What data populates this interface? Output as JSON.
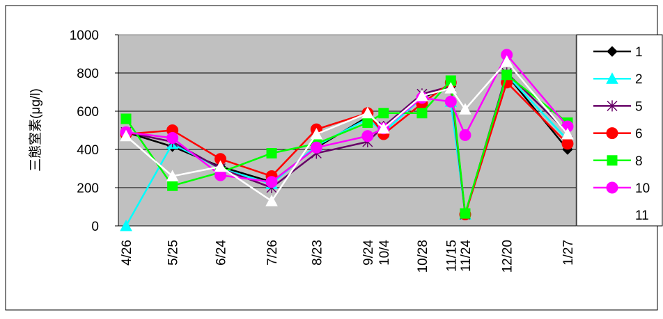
{
  "chart_data": {
    "type": "line",
    "y_label": "三態窒素(μg/l)",
    "x": [
      "4/26",
      "5/25",
      "6/24",
      "7/26",
      "8/23",
      "9/24",
      "10/4",
      "10/28",
      "11/15",
      "11/24",
      "12/20",
      "1/27"
    ],
    "ylim": [
      0,
      1000
    ],
    "yticks": [
      0,
      200,
      400,
      600,
      800,
      1000
    ],
    "grid": true,
    "legend": "right",
    "series": [
      {
        "name": "1",
        "color": "#000000",
        "marker": "diamond",
        "values": [
          490,
          415,
          310,
          230,
          410,
          570,
          520,
          670,
          730,
          60,
          790,
          400
        ]
      },
      {
        "name": "2",
        "color": "#00ffff",
        "marker": "triangle",
        "values": [
          0,
          430,
          300,
          220,
          420,
          560,
          490,
          670,
          650,
          60,
          790,
          450
        ]
      },
      {
        "name": "5",
        "color": "#660066",
        "marker": "asterisk",
        "values": [
          490,
          440,
          300,
          200,
          380,
          440,
          520,
          690,
          730,
          60,
          800,
          490
        ]
      },
      {
        "name": "6",
        "color": "#ff0000",
        "marker": "circle",
        "values": [
          480,
          500,
          350,
          260,
          505,
          590,
          480,
          640,
          750,
          60,
          750,
          430
        ]
      },
      {
        "name": "8",
        "color": "#00ff00",
        "marker": "square",
        "values": [
          560,
          210,
          280,
          380,
          430,
          540,
          590,
          590,
          760,
          65,
          790,
          540
        ]
      },
      {
        "name": "10",
        "color": "#ff00ff",
        "marker": "circle",
        "values": [
          490,
          460,
          265,
          230,
          410,
          470,
          510,
          670,
          650,
          475,
          895,
          520
        ]
      },
      {
        "name": "11",
        "color": "#ffffff",
        "marker": "triangle",
        "values": [
          470,
          260,
          310,
          130,
          480,
          590,
          510,
          680,
          720,
          610,
          860,
          480
        ]
      }
    ]
  }
}
